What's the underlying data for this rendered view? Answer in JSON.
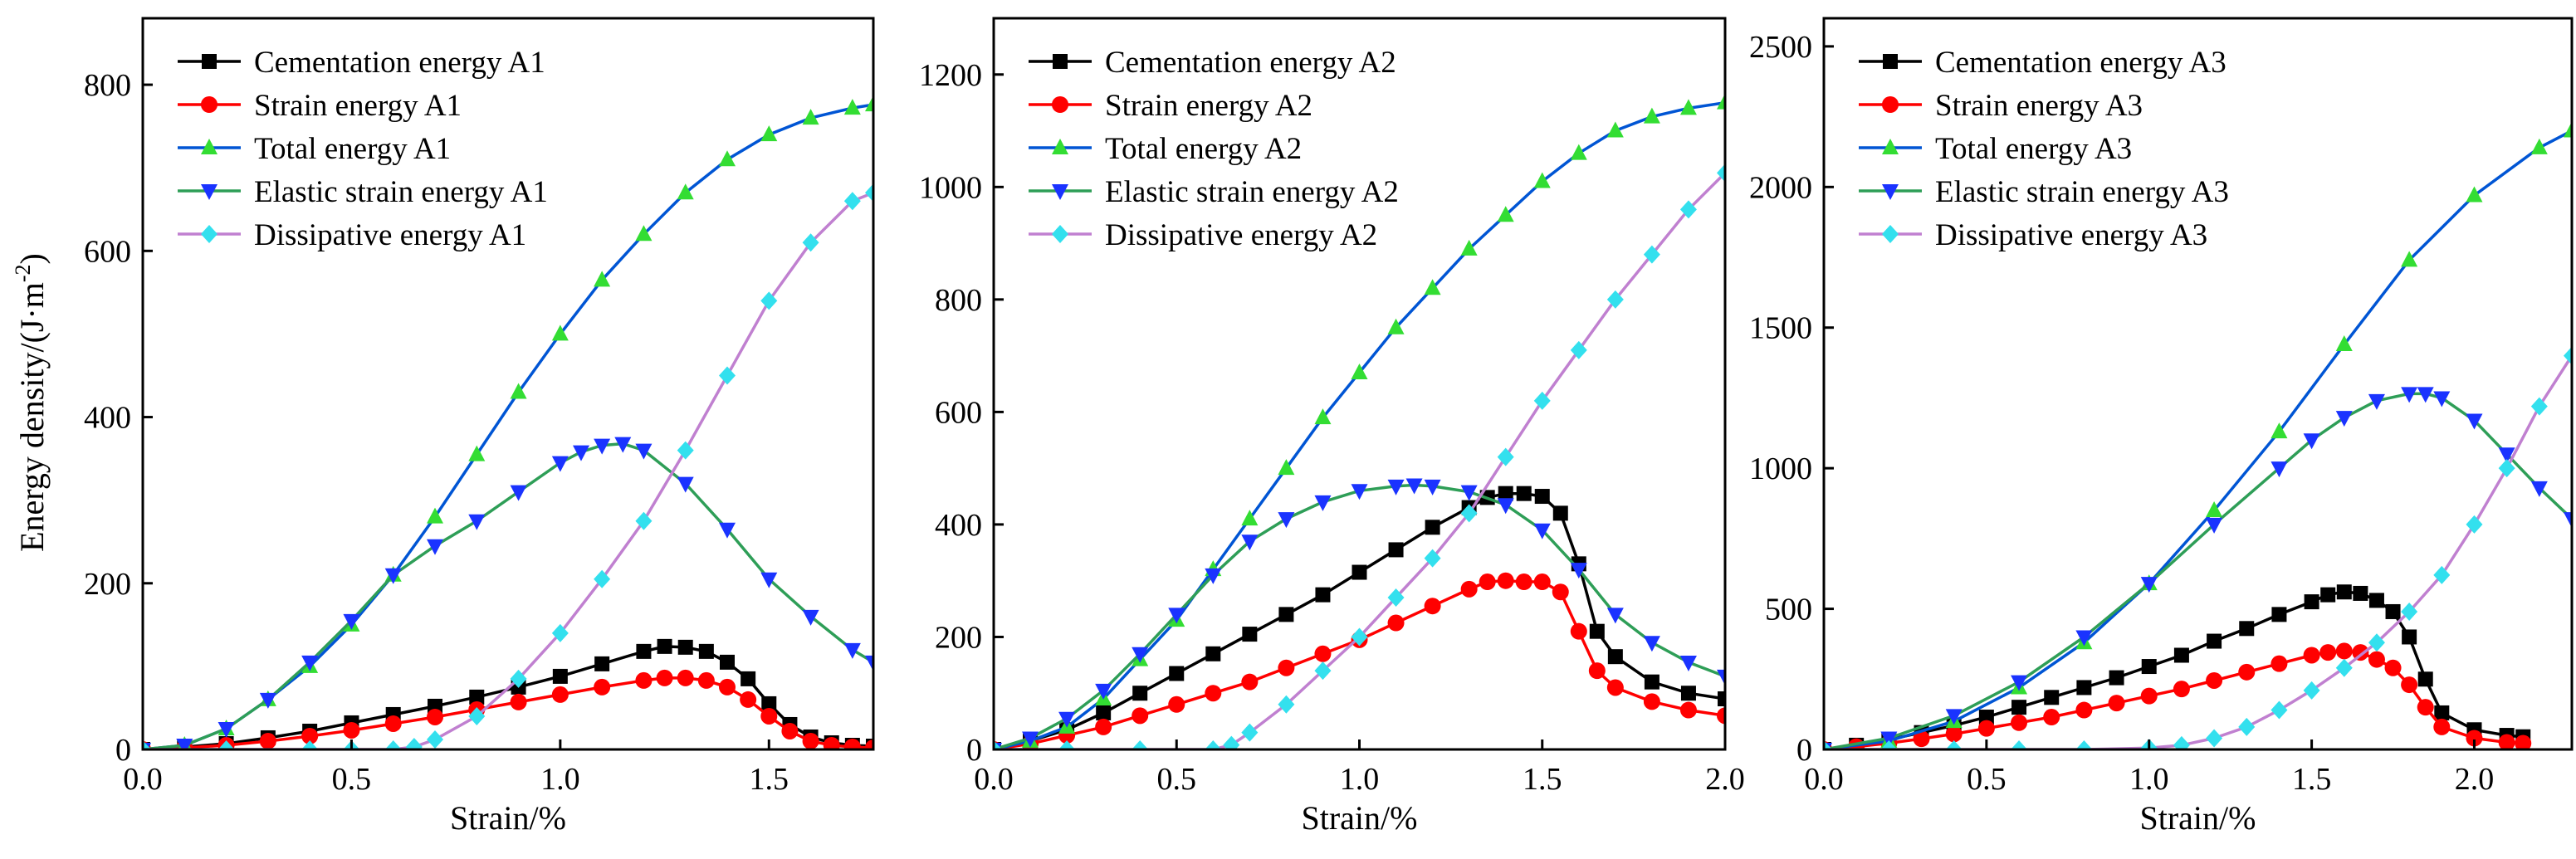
{
  "chart_data": [
    {
      "type": "line",
      "title": "",
      "xlabel": "Strain/%",
      "ylabel": "Energy density/(J·m",
      "ylabel_sup": "-2",
      "ylabel_close": ")",
      "xlim": [
        0,
        1.75
      ],
      "ylim": [
        0,
        880
      ],
      "xticks": [
        0.0,
        0.5,
        1.0,
        1.5
      ],
      "xtick_labels": [
        "0.0",
        "0.5",
        "1.0",
        "1.5"
      ],
      "yticks": [
        0,
        200,
        400,
        600,
        800
      ],
      "ytick_labels": [
        "0",
        "200",
        "400",
        "600",
        "800"
      ],
      "legend_position": "top-left",
      "series": [
        {
          "name": "Cementation energy A1",
          "color": "#000000",
          "marker": "square",
          "x": [
            0,
            0.1,
            0.2,
            0.3,
            0.4,
            0.5,
            0.6,
            0.7,
            0.8,
            0.9,
            1.0,
            1.1,
            1.2,
            1.25,
            1.3,
            1.35,
            1.4,
            1.45,
            1.5,
            1.55,
            1.6,
            1.65,
            1.7,
            1.75
          ],
          "y": [
            0,
            3,
            7,
            14,
            22,
            32,
            42,
            52,
            63,
            75,
            88,
            103,
            118,
            124,
            123,
            118,
            105,
            85,
            55,
            30,
            15,
            8,
            5,
            4
          ]
        },
        {
          "name": "Strain energy A1",
          "color": "#ff0000",
          "marker": "circle",
          "x": [
            0,
            0.1,
            0.2,
            0.3,
            0.4,
            0.5,
            0.6,
            0.7,
            0.8,
            0.9,
            1.0,
            1.1,
            1.2,
            1.25,
            1.3,
            1.35,
            1.4,
            1.45,
            1.5,
            1.55,
            1.6,
            1.65,
            1.7,
            1.75
          ],
          "y": [
            0,
            2,
            5,
            10,
            16,
            23,
            31,
            39,
            48,
            57,
            66,
            75,
            83,
            86,
            86,
            83,
            75,
            60,
            40,
            22,
            10,
            5,
            3,
            2
          ]
        },
        {
          "name": "Total energy A1",
          "color": "#0055d4",
          "marker": "triangle-up",
          "marker_color": "#33dd33",
          "x": [
            0,
            0.1,
            0.2,
            0.3,
            0.4,
            0.5,
            0.6,
            0.7,
            0.8,
            0.9,
            1.0,
            1.1,
            1.2,
            1.3,
            1.4,
            1.5,
            1.6,
            1.7,
            1.75
          ],
          "y": [
            0,
            5,
            25,
            60,
            100,
            150,
            210,
            280,
            355,
            430,
            500,
            565,
            620,
            670,
            710,
            740,
            760,
            772,
            776
          ]
        },
        {
          "name": "Elastic strain energy A1",
          "color": "#2e9e57",
          "marker": "triangle-down",
          "marker_color": "#1a33ff",
          "x": [
            0,
            0.1,
            0.2,
            0.3,
            0.4,
            0.5,
            0.6,
            0.7,
            0.8,
            0.9,
            1.0,
            1.05,
            1.1,
            1.15,
            1.2,
            1.3,
            1.4,
            1.5,
            1.6,
            1.7,
            1.75
          ],
          "y": [
            0,
            5,
            25,
            60,
            105,
            155,
            210,
            245,
            275,
            310,
            345,
            358,
            366,
            368,
            360,
            320,
            265,
            205,
            160,
            120,
            105
          ]
        },
        {
          "name": "Dissipative energy A1",
          "color": "#c080d0",
          "marker": "diamond",
          "marker_color": "#33e0ee",
          "x": [
            0,
            0.2,
            0.4,
            0.5,
            0.6,
            0.65,
            0.7,
            0.8,
            0.9,
            1.0,
            1.1,
            1.2,
            1.3,
            1.4,
            1.5,
            1.6,
            1.7,
            1.75
          ],
          "y": [
            0,
            0,
            0,
            0,
            0,
            3,
            12,
            40,
            85,
            140,
            205,
            275,
            360,
            450,
            540,
            610,
            660,
            670
          ]
        }
      ]
    },
    {
      "type": "line",
      "title": "",
      "xlabel": "Strain/%",
      "ylabel": "",
      "xlim": [
        0,
        2.0
      ],
      "ylim": [
        0,
        1300
      ],
      "xticks": [
        0.0,
        0.5,
        1.0,
        1.5,
        2.0
      ],
      "xtick_labels": [
        "0.0",
        "0.5",
        "1.0",
        "1.5",
        "2.0"
      ],
      "yticks": [
        0,
        200,
        400,
        600,
        800,
        1000,
        1200
      ],
      "ytick_labels": [
        "0",
        "200",
        "400",
        "600",
        "800",
        "1000",
        "1200"
      ],
      "legend_position": "top-left",
      "series": [
        {
          "name": "Cementation energy A2",
          "color": "#000000",
          "marker": "square",
          "x": [
            0,
            0.1,
            0.2,
            0.3,
            0.4,
            0.5,
            0.6,
            0.7,
            0.8,
            0.9,
            1.0,
            1.1,
            1.2,
            1.3,
            1.35,
            1.4,
            1.45,
            1.5,
            1.55,
            1.6,
            1.65,
            1.7,
            1.8,
            1.9,
            2.0
          ],
          "y": [
            0,
            15,
            35,
            65,
            100,
            135,
            170,
            205,
            240,
            275,
            315,
            355,
            395,
            430,
            448,
            455,
            455,
            450,
            420,
            330,
            210,
            165,
            120,
            100,
            90
          ]
        },
        {
          "name": "Strain energy A2",
          "color": "#ff0000",
          "marker": "circle",
          "x": [
            0,
            0.1,
            0.2,
            0.3,
            0.4,
            0.5,
            0.6,
            0.7,
            0.8,
            0.9,
            1.0,
            1.1,
            1.2,
            1.3,
            1.35,
            1.4,
            1.45,
            1.5,
            1.55,
            1.6,
            1.65,
            1.7,
            1.8,
            1.9,
            2.0
          ],
          "y": [
            0,
            10,
            25,
            40,
            60,
            80,
            100,
            120,
            145,
            170,
            195,
            225,
            255,
            285,
            298,
            300,
            298,
            298,
            280,
            210,
            140,
            110,
            85,
            70,
            60
          ]
        },
        {
          "name": "Total energy A2",
          "color": "#0055d4",
          "marker": "triangle-up",
          "marker_color": "#33dd33",
          "x": [
            0,
            0.1,
            0.2,
            0.3,
            0.4,
            0.5,
            0.6,
            0.7,
            0.8,
            0.9,
            1.0,
            1.1,
            1.2,
            1.3,
            1.4,
            1.5,
            1.6,
            1.7,
            1.8,
            1.9,
            2.0
          ],
          "y": [
            0,
            15,
            40,
            90,
            160,
            230,
            320,
            410,
            500,
            590,
            670,
            750,
            820,
            890,
            950,
            1010,
            1060,
            1100,
            1125,
            1140,
            1150
          ]
        },
        {
          "name": "Elastic strain energy A2",
          "color": "#2e9e57",
          "marker": "triangle-down",
          "marker_color": "#1a33ff",
          "x": [
            0,
            0.1,
            0.2,
            0.3,
            0.4,
            0.5,
            0.6,
            0.7,
            0.8,
            0.9,
            1.0,
            1.1,
            1.15,
            1.2,
            1.3,
            1.4,
            1.5,
            1.6,
            1.7,
            1.8,
            1.9,
            2.0
          ],
          "y": [
            0,
            20,
            55,
            105,
            170,
            240,
            310,
            370,
            410,
            440,
            460,
            468,
            470,
            468,
            458,
            435,
            390,
            320,
            240,
            190,
            155,
            130
          ]
        },
        {
          "name": "Dissipative energy A2",
          "color": "#c080d0",
          "marker": "diamond",
          "marker_color": "#33e0ee",
          "x": [
            0,
            0.2,
            0.4,
            0.6,
            0.65,
            0.7,
            0.8,
            0.9,
            1.0,
            1.1,
            1.2,
            1.3,
            1.4,
            1.5,
            1.6,
            1.7,
            1.8,
            1.9,
            2.0
          ],
          "y": [
            0,
            0,
            0,
            0,
            8,
            30,
            80,
            140,
            200,
            270,
            340,
            420,
            520,
            620,
            710,
            800,
            880,
            960,
            1025
          ]
        }
      ]
    },
    {
      "type": "line",
      "title": "",
      "xlabel": "Strain/%",
      "ylabel": "",
      "xlim": [
        0,
        2.3
      ],
      "ylim": [
        0,
        2600
      ],
      "xticks": [
        0.0,
        0.5,
        1.0,
        1.5,
        2.0
      ],
      "xtick_labels": [
        "0.0",
        "0.5",
        "1.0",
        "1.5",
        "2.0"
      ],
      "yticks": [
        0,
        500,
        1000,
        1500,
        2000,
        2500
      ],
      "ytick_labels": [
        "0",
        "500",
        "1000",
        "1500",
        "2000",
        "2500"
      ],
      "legend_position": "top-left",
      "series": [
        {
          "name": "Cementation energy A3",
          "color": "#000000",
          "marker": "square",
          "x": [
            0,
            0.1,
            0.2,
            0.3,
            0.4,
            0.5,
            0.6,
            0.7,
            0.8,
            0.9,
            1.0,
            1.1,
            1.2,
            1.3,
            1.4,
            1.5,
            1.55,
            1.6,
            1.65,
            1.7,
            1.75,
            1.8,
            1.85,
            1.9,
            2.0,
            2.1,
            2.15
          ],
          "y": [
            0,
            15,
            35,
            60,
            85,
            115,
            150,
            185,
            220,
            255,
            295,
            335,
            385,
            430,
            480,
            525,
            550,
            560,
            555,
            530,
            490,
            400,
            250,
            130,
            70,
            50,
            45
          ]
        },
        {
          "name": "Strain energy A3",
          "color": "#ff0000",
          "marker": "circle",
          "x": [
            0,
            0.1,
            0.2,
            0.3,
            0.4,
            0.5,
            0.6,
            0.7,
            0.8,
            0.9,
            1.0,
            1.1,
            1.2,
            1.3,
            1.4,
            1.5,
            1.55,
            1.6,
            1.65,
            1.7,
            1.75,
            1.8,
            1.85,
            1.9,
            2.0,
            2.1,
            2.15
          ],
          "y": [
            0,
            10,
            22,
            38,
            55,
            75,
            95,
            115,
            140,
            165,
            190,
            215,
            245,
            275,
            305,
            335,
            345,
            350,
            345,
            320,
            290,
            230,
            150,
            80,
            40,
            25,
            22
          ]
        },
        {
          "name": "Total energy A3",
          "color": "#0055d4",
          "marker": "triangle-up",
          "marker_color": "#33dd33",
          "x": [
            0,
            0.2,
            0.4,
            0.6,
            0.8,
            1.0,
            1.2,
            1.4,
            1.6,
            1.8,
            2.0,
            2.2,
            2.3
          ],
          "y": [
            0,
            30,
            100,
            220,
            380,
            590,
            850,
            1130,
            1440,
            1740,
            1970,
            2140,
            2200
          ]
        },
        {
          "name": "Elastic strain energy A3",
          "color": "#2e9e57",
          "marker": "triangle-down",
          "marker_color": "#1a33ff",
          "x": [
            0,
            0.2,
            0.4,
            0.6,
            0.8,
            1.0,
            1.2,
            1.4,
            1.5,
            1.6,
            1.7,
            1.8,
            1.85,
            1.9,
            2.0,
            2.1,
            2.2,
            2.3
          ],
          "y": [
            0,
            40,
            120,
            240,
            400,
            590,
            800,
            1000,
            1100,
            1180,
            1240,
            1265,
            1265,
            1250,
            1170,
            1050,
            930,
            820
          ]
        },
        {
          "name": "Dissipative energy A3",
          "color": "#c080d0",
          "marker": "diamond",
          "marker_color": "#33e0ee",
          "x": [
            0,
            0.2,
            0.4,
            0.6,
            0.8,
            1.0,
            1.1,
            1.2,
            1.3,
            1.4,
            1.5,
            1.6,
            1.7,
            1.8,
            1.9,
            2.0,
            2.1,
            2.2,
            2.3
          ],
          "y": [
            0,
            0,
            0,
            0,
            0,
            5,
            15,
            40,
            80,
            140,
            210,
            290,
            380,
            490,
            620,
            800,
            1000,
            1220,
            1400
          ]
        }
      ]
    }
  ]
}
